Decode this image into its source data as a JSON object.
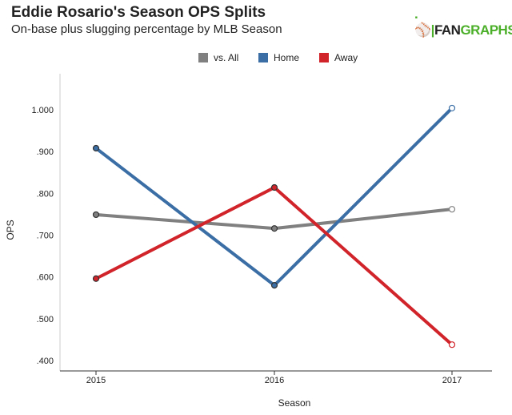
{
  "header": {
    "title": "Eddie Rosario's Season OPS Splits",
    "subtitle": "On-base plus slugging percentage by MLB Season",
    "logo": "FANGRAPHS"
  },
  "chart_data": {
    "type": "line",
    "title": "Eddie Rosario's Season OPS Splits",
    "subtitle": "On-base plus slugging percentage by MLB Season",
    "xlabel": "Season",
    "ylabel": "OPS",
    "categories": [
      "2015",
      "2016",
      "2017"
    ],
    "ylim": [
      0.38,
      1.05
    ],
    "yticks": [
      ".400",
      ".500",
      ".600",
      ".700",
      ".800",
      ".900",
      "1.000"
    ],
    "grid": false,
    "legend": "top",
    "series": [
      {
        "name": "vs. All",
        "color": "#808080",
        "values": [
          0.749,
          0.716,
          0.762
        ]
      },
      {
        "name": "Home",
        "color": "#3a6ea5",
        "values": [
          0.908,
          0.58,
          1.004
        ]
      },
      {
        "name": "Away",
        "color": "#d1232a",
        "values": [
          0.596,
          0.814,
          0.438
        ]
      }
    ]
  }
}
